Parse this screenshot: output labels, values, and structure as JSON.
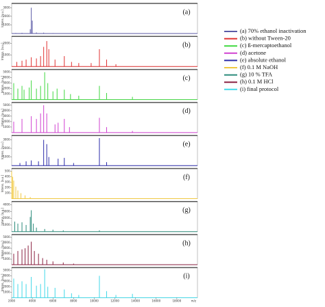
{
  "chart_data": [
    {
      "type": "spectrum",
      "name": "(a) 70% ethanol inactivation",
      "panel_label": "(a)",
      "color": "#5b5aa6",
      "ylabel": "Intens. [a.u.]",
      "xlim": [
        2000,
        20000
      ],
      "ylim": [
        0,
        3500
      ],
      "yticks": [
        1000,
        2000,
        3000
      ],
      "x": [
        2400,
        3000,
        3800,
        3900,
        4000,
        4400,
        5100,
        6000
      ],
      "values": [
        60,
        80,
        500,
        3000,
        1500,
        120,
        100,
        50
      ]
    },
    {
      "type": "spectrum",
      "name": "(b) without Tween-20",
      "panel_label": "(b)",
      "color": "#e03030",
      "ylabel": "Intens. [a.u.]",
      "xlim": [
        2000,
        20000
      ],
      "ylim": [
        0,
        2600
      ],
      "yticks": [
        1000,
        2000
      ],
      "x": [
        2500,
        3000,
        3400,
        3900,
        4400,
        4800,
        5100,
        5400,
        5600,
        6200,
        7100,
        7800,
        8500,
        9700,
        10500,
        11200,
        12100
      ],
      "values": [
        400,
        500,
        600,
        800,
        700,
        900,
        1700,
        2200,
        1500,
        600,
        900,
        400,
        300,
        300,
        1500,
        600,
        200
      ]
    },
    {
      "type": "spectrum",
      "name": "(c) ß-mercaptoethanol",
      "panel_label": "(c)",
      "color": "#3fd83f",
      "ylabel": "Intens. [a.u.]",
      "xlim": [
        2000,
        20000
      ],
      "ylim": [
        0,
        5500
      ],
      "yticks": [
        1000,
        2000,
        3000,
        4000,
        5000
      ],
      "x": [
        2200,
        2600,
        3000,
        3200,
        3700,
        3900,
        4400,
        4800,
        5200,
        5500,
        6000,
        6400,
        7100,
        7700,
        8500,
        10500,
        11200,
        13700
      ],
      "values": [
        3000,
        2000,
        2500,
        1800,
        2200,
        3500,
        2000,
        2500,
        5000,
        3000,
        1500,
        2000,
        1800,
        1000,
        700,
        2500,
        1200,
        500
      ]
    },
    {
      "type": "spectrum",
      "name": "(d) acetone",
      "panel_label": "(d)",
      "color": "#d040d0",
      "ylabel": "Intens. [a.u.]",
      "xlim": [
        2000,
        20000
      ],
      "ylim": [
        0,
        5500
      ],
      "yticks": [
        1000,
        2000,
        3000,
        4000,
        5000
      ],
      "x": [
        2200,
        3000,
        3900,
        4400,
        4800,
        5100,
        5400,
        6200,
        6500,
        7100,
        7600,
        10500,
        11200,
        13700
      ],
      "values": [
        2000,
        2500,
        3000,
        2500,
        3500,
        5000,
        3500,
        1500,
        1800,
        2500,
        1000,
        2700,
        1000,
        300
      ]
    },
    {
      "type": "spectrum",
      "name": "(e) absolute ethanol",
      "panel_label": "(e)",
      "color": "#2a2aa8",
      "ylabel": "Intens. [a.u.]",
      "xlim": [
        2000,
        20000
      ],
      "ylim": [
        0,
        3500
      ],
      "yticks": [
        1000,
        2000,
        3000
      ],
      "x": [
        2800,
        3400,
        3900,
        4600,
        5100,
        5400,
        5600,
        6500,
        7100,
        8000,
        10500,
        11200
      ],
      "values": [
        300,
        500,
        600,
        500,
        3000,
        2500,
        1000,
        800,
        900,
        300,
        3200,
        400
      ]
    },
    {
      "type": "spectrum",
      "name": "(f) 0.1 M NaOH",
      "panel_label": "(f)",
      "color": "#f0c840",
      "ylabel": "Intens. [a.u.]",
      "xlim": [
        2000,
        20000
      ],
      "ylim": [
        0,
        550
      ],
      "yticks": [
        100,
        200,
        300,
        400,
        500
      ],
      "x": [
        2000,
        2100,
        2200,
        2400,
        2600,
        2900,
        3300,
        3800
      ],
      "values": [
        500,
        400,
        330,
        220,
        150,
        100,
        60,
        30
      ]
    },
    {
      "type": "spectrum",
      "name": "(g) 10 % TFA",
      "panel_label": "(g)",
      "color": "#2a8a7a",
      "ylabel": "Intens. [a.u.]",
      "xlim": [
        2000,
        20000
      ],
      "ylim": [
        0,
        4500
      ],
      "yticks": [
        1000,
        2000,
        3000,
        4000
      ],
      "x": [
        2300,
        2600,
        3000,
        3400,
        3800,
        3900,
        4100,
        4400,
        5200,
        6000,
        7000,
        10500
      ],
      "values": [
        1500,
        1200,
        1400,
        1000,
        2200,
        3200,
        1200,
        600,
        400,
        300,
        200,
        200
      ]
    },
    {
      "type": "spectrum",
      "name": "(h) 0.1 M HCl",
      "panel_label": "(h)",
      "color": "#8a2040",
      "ylabel": "Intens. [a.u.]",
      "xlim": [
        2000,
        20000
      ],
      "ylim": [
        0,
        5500
      ],
      "yticks": [
        1000,
        2000,
        3000,
        4000,
        5000
      ],
      "x": [
        2200,
        2600,
        3000,
        3300,
        3600,
        3900,
        4200,
        4600,
        5000,
        5400,
        6000,
        7000,
        8000
      ],
      "values": [
        2000,
        2500,
        2800,
        3000,
        3500,
        4200,
        2500,
        2000,
        1200,
        900,
        600,
        400,
        200
      ]
    },
    {
      "type": "spectrum",
      "name": "(i) final protocol",
      "panel_label": "(i)",
      "color": "#40d8e8",
      "ylabel": "Intens. [a.u.]",
      "xlim": [
        2000,
        20000
      ],
      "ylim": [
        0,
        5500
      ],
      "yticks": [
        1000,
        2000,
        3000,
        4000,
        5000
      ],
      "x": [
        2200,
        2600,
        3000,
        3400,
        3900,
        4400,
        4800,
        5200,
        5500,
        6200,
        7100,
        7800,
        8500,
        10500,
        11200,
        12100,
        13700
      ],
      "values": [
        3500,
        2500,
        3000,
        2500,
        3800,
        2200,
        2500,
        5200,
        2000,
        1800,
        1500,
        800,
        500,
        4000,
        1200,
        500,
        700
      ],
      "xticks": [
        2000,
        4000,
        6000,
        8000,
        10000,
        12000,
        14000,
        16000,
        18000
      ],
      "xlabel": "m/z"
    }
  ]
}
